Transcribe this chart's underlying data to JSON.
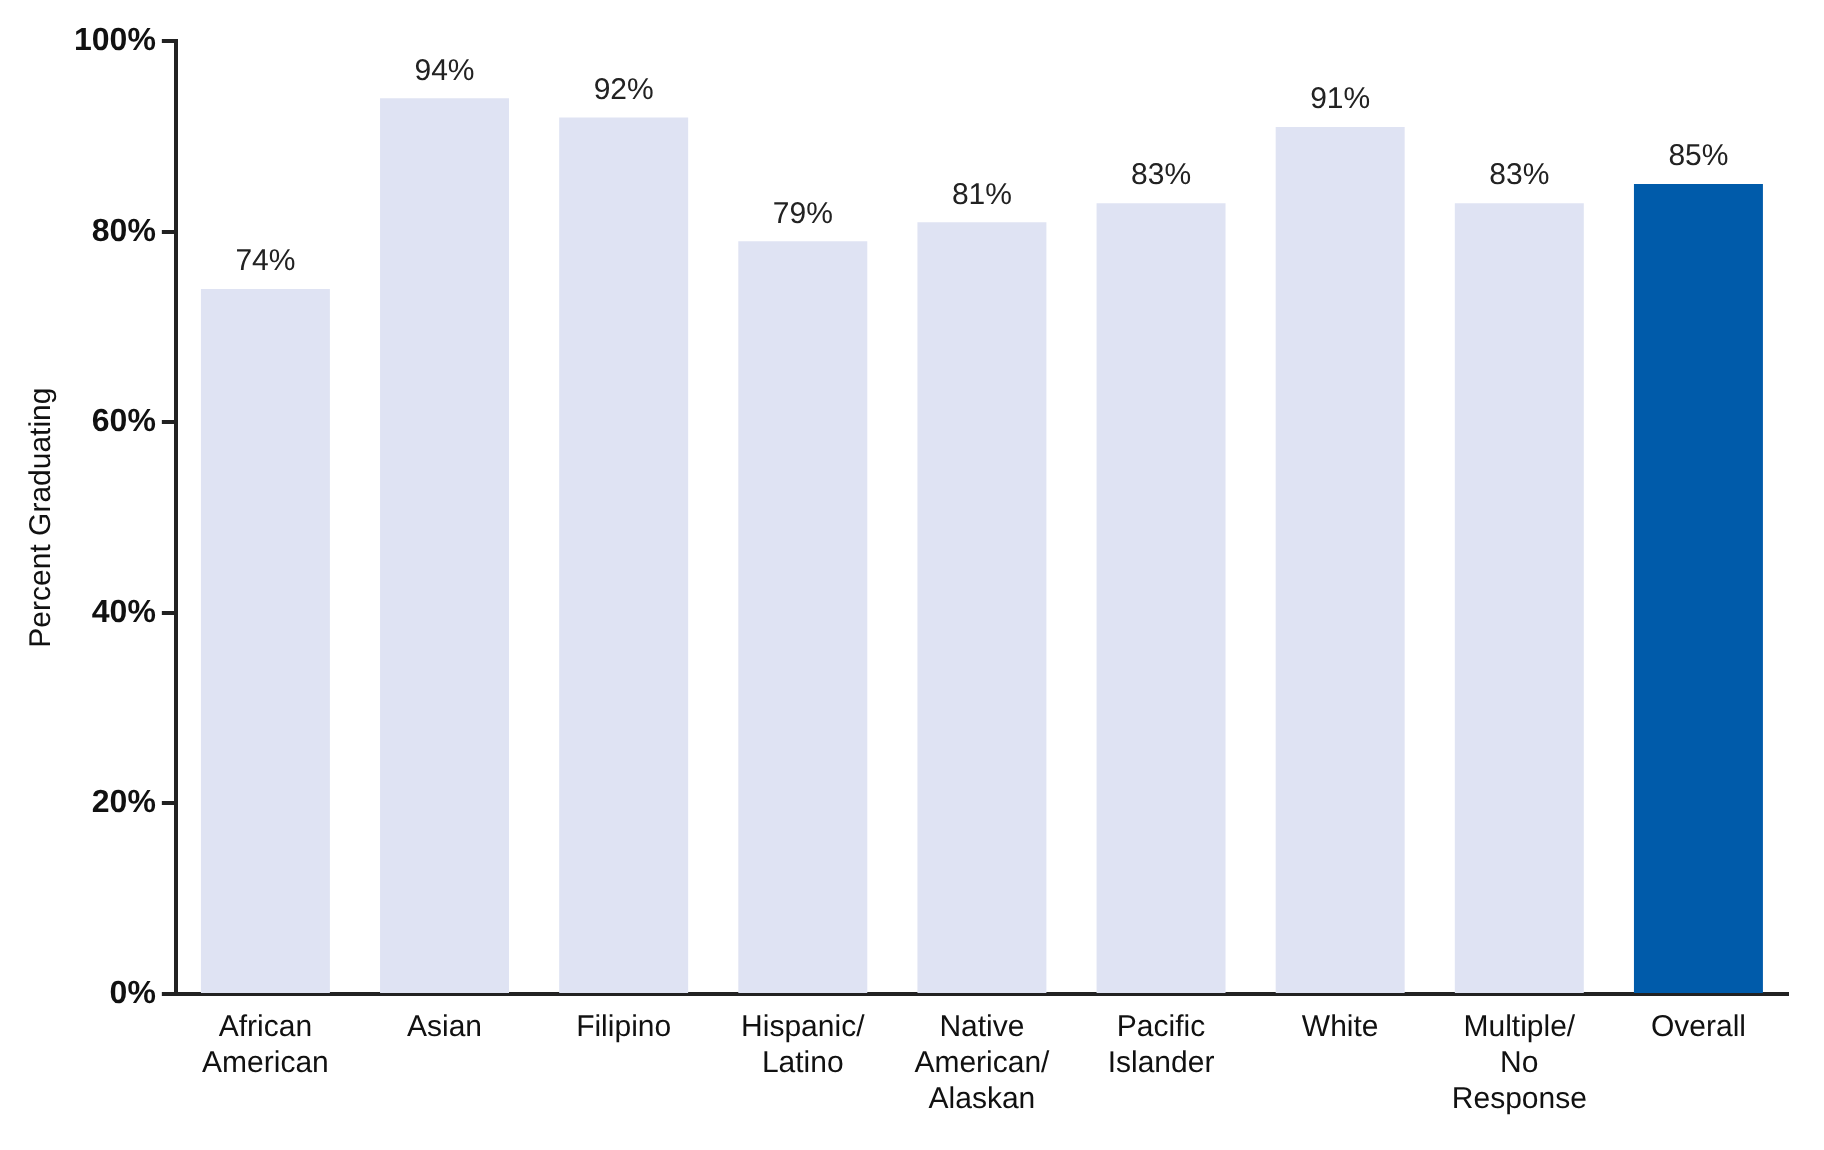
{
  "chart_data": {
    "type": "bar",
    "ylabel": "Percent Graduating",
    "categories": [
      "African American",
      "Asian",
      "Filipino",
      "Hispanic/Latino",
      "Native American/Alaskan",
      "Pacific Islander",
      "White",
      "Multiple/No Response",
      "Overall"
    ],
    "values": [
      74,
      94,
      92,
      79,
      81,
      83,
      91,
      83,
      85
    ],
    "colors": [
      "#dfe3f3",
      "#dfe3f3",
      "#dfe3f3",
      "#dfe3f3",
      "#dfe3f3",
      "#dfe3f3",
      "#dfe3f3",
      "#dfe3f3",
      "#005baa"
    ],
    "value_labels": [
      "74%",
      "94%",
      "92%",
      "79%",
      "81%",
      "83%",
      "91%",
      "83%",
      "85%"
    ],
    "ylim": [
      0,
      100
    ],
    "yticks": [
      {
        "value": 0,
        "label": "0%"
      },
      {
        "value": 20,
        "label": "20%"
      },
      {
        "value": 40,
        "label": "40%"
      },
      {
        "value": 60,
        "label": "60%"
      },
      {
        "value": 80,
        "label": "80%"
      },
      {
        "value": 100,
        "label": "100%"
      }
    ],
    "grid": false,
    "legend": false
  }
}
